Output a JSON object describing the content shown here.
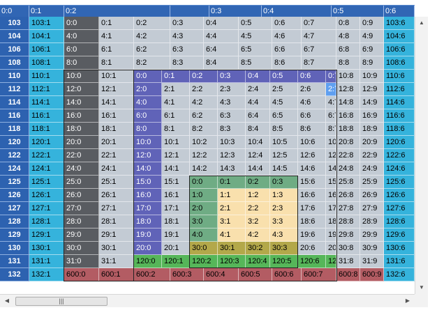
{
  "scrollbar": {
    "thumb_grip": "|||"
  },
  "colors": {
    "header": "#3166b4",
    "rowHeader": "#2d62b0",
    "cyan": "#35b3dc",
    "darkGray": "#595c61",
    "gray": "#c3cbd4",
    "purple": "#6063b8",
    "green": "#6fac84",
    "yellow": "#f9e0ad",
    "olive": "#b3a84a",
    "lime": "#56b659",
    "red": "#b35c63",
    "highlight": "#5f9ff0"
  },
  "highlighted_cell": "2:7",
  "column_headers": [
    "0:0",
    "0:1",
    "0:2",
    "",
    "0:3",
    "0:4",
    "0:5",
    "0:6"
  ],
  "row_headers": [
    "103",
    "104",
    "106",
    "108",
    "110",
    "112",
    "114",
    "116",
    "118",
    "120",
    "122",
    "124",
    "125",
    "126",
    "127",
    "128",
    "129",
    "130",
    "131",
    "132"
  ],
  "rows": [
    {
      "b": "103:1",
      "c": "0:0",
      "d": "0:1",
      "e": "0:2",
      "f": "0:3",
      "g": "0:4",
      "h": "0:5",
      "i": "0:6",
      "j": "0:7",
      "k": "0:8",
      "l": "0:9",
      "m": "103:6"
    },
    {
      "b": "104:1",
      "c": "4:0",
      "d": "4:1",
      "e": "4:2",
      "f": "4:3",
      "g": "4:4",
      "h": "4:5",
      "i": "4:6",
      "j": "4:7",
      "k": "4:8",
      "l": "4:9",
      "m": "104:6"
    },
    {
      "b": "106:1",
      "c": "6:0",
      "d": "6:1",
      "e": "6:2",
      "f": "6:3",
      "g": "6:4",
      "h": "6:5",
      "i": "6:6",
      "j": "6:7",
      "k": "6:8",
      "l": "6:9",
      "m": "106:6"
    },
    {
      "b": "108:1",
      "c": "8:0",
      "d": "8:1",
      "e": "8:2",
      "f": "8:3",
      "g": "8:4",
      "h": "8:5",
      "i": "8:6",
      "j": "8:7",
      "k": "8:8",
      "l": "8:9",
      "m": "108:6"
    },
    {
      "b": "110:1",
      "c": "10:0",
      "d": "10:1",
      "e": "0:0",
      "f": "0:1",
      "g": "0:2",
      "h": "0:3",
      "i": "0:4",
      "j": "0:5",
      "k": "0:6",
      "l": "0:7",
      "m": "10:8",
      "n": "10:9",
      "o": "110:6"
    },
    {
      "b": "112:1",
      "c": "12:0",
      "d": "12:1",
      "e": "2:0",
      "f": "2:1",
      "g": "2:2",
      "h": "2:3",
      "i": "2:4",
      "j": "2:5",
      "k": "2:6",
      "l": "2:7",
      "m": "12:8",
      "n": "12:9",
      "o": "112:6"
    },
    {
      "b": "114:1",
      "c": "14:0",
      "d": "14:1",
      "e": "4:0",
      "f": "4:1",
      "g": "4:2",
      "h": "4:3",
      "i": "4:4",
      "j": "4:5",
      "k": "4:6",
      "l": "4:7",
      "m": "14:8",
      "n": "14:9",
      "o": "114:6"
    },
    {
      "b": "116:1",
      "c": "16:0",
      "d": "16:1",
      "e": "6:0",
      "f": "6:1",
      "g": "6:2",
      "h": "6:3",
      "i": "6:4",
      "j": "6:5",
      "k": "6:6",
      "l": "6:7",
      "m": "16:8",
      "n": "16:9",
      "o": "116:6"
    },
    {
      "b": "118:1",
      "c": "18:0",
      "d": "18:1",
      "e": "8:0",
      "f": "8:1",
      "g": "8:2",
      "h": "8:3",
      "i": "8:4",
      "j": "8:5",
      "k": "8:6",
      "l": "8:7",
      "m": "18:8",
      "n": "18:9",
      "o": "118:6"
    },
    {
      "b": "120:1",
      "c": "20:0",
      "d": "20:1",
      "e": "10:0",
      "f": "10:1",
      "g": "10:2",
      "h": "10:3",
      "i": "10:4",
      "j": "10:5",
      "k": "10:6",
      "l": "10:7",
      "m": "20:8",
      "n": "20:9",
      "o": "120:6"
    },
    {
      "b": "122:1",
      "c": "22:0",
      "d": "22:1",
      "e": "12:0",
      "f": "12:1",
      "g": "12:2",
      "h": "12:3",
      "i": "12:4",
      "j": "12:5",
      "k": "12:6",
      "l": "12:7",
      "m": "22:8",
      "n": "22:9",
      "o": "122:6"
    },
    {
      "b": "124:1",
      "c": "24:0",
      "d": "24:1",
      "e": "14:0",
      "f": "14:1",
      "g": "14:2",
      "h": "14:3",
      "i": "14:4",
      "j": "14:5",
      "k": "14:6",
      "l": "14:7",
      "m": "24:8",
      "n": "24:9",
      "o": "124:6"
    },
    {
      "b": "125:1",
      "c": "25:0",
      "d": "25:1",
      "e": "15:0",
      "f": "15:1",
      "g": "0:0",
      "h": "0:1",
      "i": "0:2",
      "j": "0:3",
      "k": "15:6",
      "l": "15:7",
      "m": "25:8",
      "n": "25:9",
      "o": "125:6"
    },
    {
      "b": "126:1",
      "c": "26:0",
      "d": "26:1",
      "e": "16:0",
      "f": "16:1",
      "g": "1:0",
      "h": "1:1",
      "i": "1:2",
      "j": "1:3",
      "k": "16:6",
      "l": "16:7",
      "m": "26:8",
      "n": "26:9",
      "o": "126:6"
    },
    {
      "b": "127:1",
      "c": "27:0",
      "d": "27:1",
      "e": "17:0",
      "f": "17:1",
      "g": "2:0",
      "h": "2:1",
      "i": "2:2",
      "j": "2:3",
      "k": "17:6",
      "l": "17:7",
      "m": "27:8",
      "n": "27:9",
      "o": "127:6"
    },
    {
      "b": "128:1",
      "c": "28:0",
      "d": "28:1",
      "e": "18:0",
      "f": "18:1",
      "g": "3:0",
      "h": "3:1",
      "i": "3:2",
      "j": "3:3",
      "k": "18:6",
      "l": "18:7",
      "m": "28:8",
      "n": "28:9",
      "o": "128:6"
    },
    {
      "b": "129:1",
      "c": "29:0",
      "d": "29:1",
      "e": "19:0",
      "f": "19:1",
      "g": "4:0",
      "h": "4:1",
      "i": "4:2",
      "j": "4:3",
      "k": "19:6",
      "l": "19:7",
      "m": "29:8",
      "n": "29:9",
      "o": "129:6"
    },
    {
      "b": "130:1",
      "c": "30:0",
      "d": "30:1",
      "e": "20:0",
      "f": "20:1",
      "g": "30:0",
      "h": "30:1",
      "i": "30:2",
      "j": "30:3",
      "k": "20:6",
      "l": "20:7",
      "m": "30:8",
      "n": "30:9",
      "o": "130:6"
    },
    {
      "b": "131:1",
      "c": "31:0",
      "d": "31:1",
      "e": "120:0",
      "f": "120:1",
      "g": "120:2",
      "h": "120:3",
      "i": "120:4",
      "j": "120:5",
      "k": "120:6",
      "l": "120:7",
      "m": "31:8",
      "n": "31:9",
      "o": "131:6"
    },
    {
      "b": "132:1",
      "c": "600:0",
      "d": "600:1",
      "e": "600:2",
      "f": "600:3",
      "g": "600:4",
      "h": "600:5",
      "i": "600:6",
      "j": "600:7",
      "k": "600:8",
      "l": "600:9",
      "m": "132:6"
    }
  ]
}
